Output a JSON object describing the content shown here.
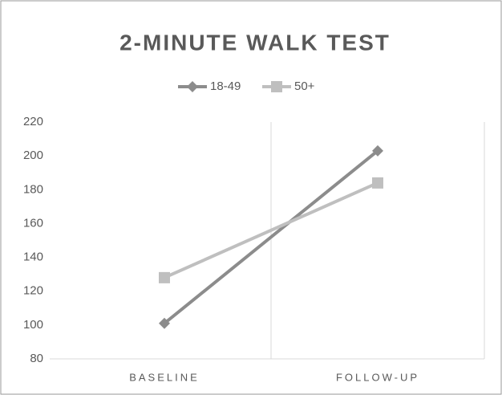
{
  "chart_data": {
    "type": "line",
    "title": "2-MINUTE WALK TEST",
    "categories": [
      "BASELINE",
      "FOLLOW-UP"
    ],
    "series": [
      {
        "name": "18-49",
        "color": "#8c8c8c",
        "marker": "diamond",
        "values": [
          101,
          203
        ]
      },
      {
        "name": "50+",
        "color": "#bfbfbf",
        "marker": "square",
        "values": [
          128,
          184
        ]
      }
    ],
    "ylim": [
      80,
      220
    ],
    "yticks": [
      80,
      100,
      120,
      140,
      160,
      180,
      200,
      220
    ],
    "legend": "top"
  }
}
